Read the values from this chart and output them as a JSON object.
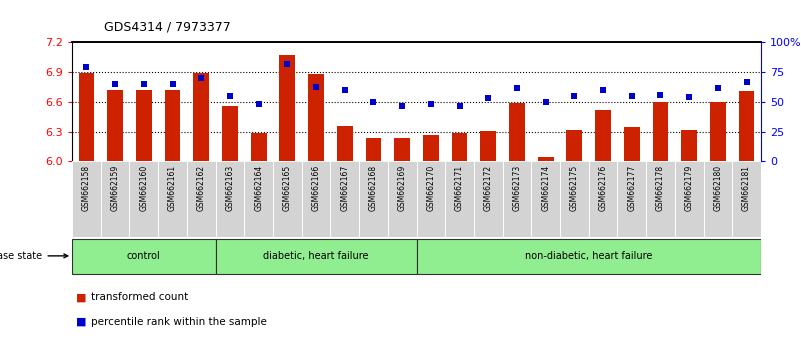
{
  "title": "GDS4314 / 7973377",
  "samples": [
    "GSM662158",
    "GSM662159",
    "GSM662160",
    "GSM662161",
    "GSM662162",
    "GSM662163",
    "GSM662164",
    "GSM662165",
    "GSM662166",
    "GSM662167",
    "GSM662168",
    "GSM662169",
    "GSM662170",
    "GSM662171",
    "GSM662172",
    "GSM662173",
    "GSM662174",
    "GSM662175",
    "GSM662176",
    "GSM662177",
    "GSM662178",
    "GSM662179",
    "GSM662180",
    "GSM662181"
  ],
  "bar_values": [
    6.895,
    6.72,
    6.72,
    6.72,
    6.895,
    6.555,
    6.285,
    7.07,
    6.88,
    6.36,
    6.24,
    6.24,
    6.27,
    6.285,
    6.31,
    6.585,
    6.04,
    6.32,
    6.52,
    6.345,
    6.595,
    6.32,
    6.595,
    6.71
  ],
  "percentile_values": [
    79,
    65,
    65,
    65,
    70,
    55,
    48,
    82,
    63,
    60,
    50,
    47,
    48,
    47,
    53,
    62,
    50,
    55,
    60,
    55,
    56,
    54,
    62,
    67
  ],
  "bar_color": "#cc2200",
  "percentile_color": "#0000cc",
  "ylim_left": [
    6.0,
    7.2
  ],
  "ylim_right": [
    0,
    100
  ],
  "yticks_left": [
    6.0,
    6.3,
    6.6,
    6.9,
    7.2
  ],
  "yticks_right": [
    0,
    25,
    50,
    75,
    100
  ],
  "ytick_labels_right": [
    "0",
    "25",
    "50",
    "75",
    "100%"
  ],
  "grid_values": [
    6.3,
    6.6,
    6.9
  ],
  "groups": [
    {
      "label": "control",
      "start": 0,
      "end": 4
    },
    {
      "label": "diabetic, heart failure",
      "start": 5,
      "end": 11
    },
    {
      "label": "non-diabetic, heart failure",
      "start": 12,
      "end": 23
    }
  ],
  "group_colors": [
    "#90EE90",
    "#90EE90",
    "#90EE90"
  ],
  "disease_state_label": "disease state",
  "legend_bar_label": "transformed count",
  "legend_pct_label": "percentile rank within the sample",
  "background_gray": "#d3d3d3",
  "bg_white": "#ffffff"
}
